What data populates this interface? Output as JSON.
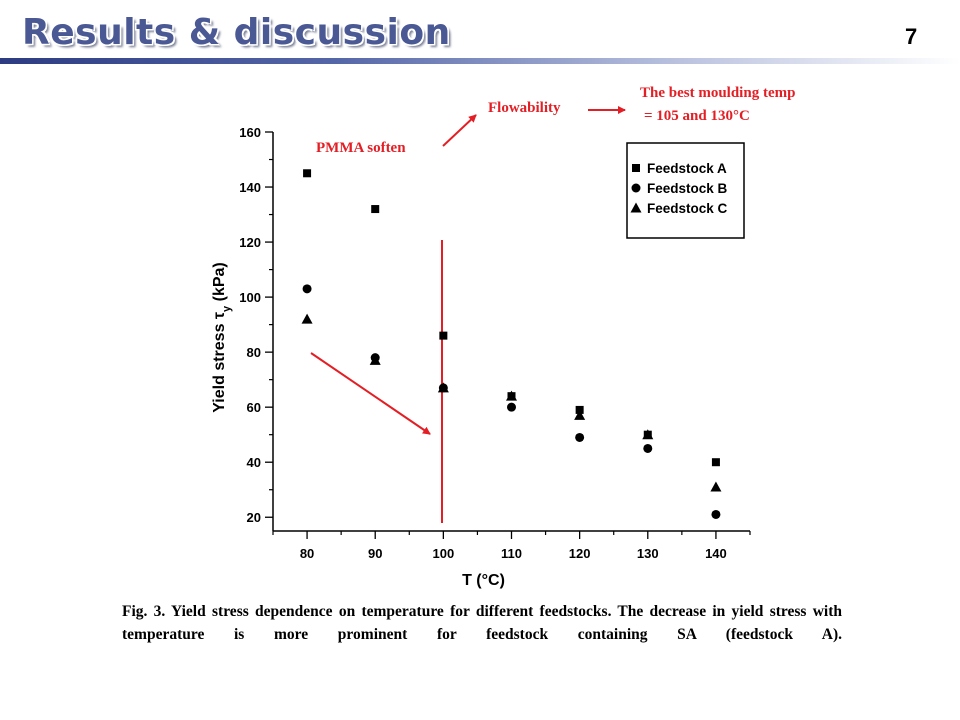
{
  "slide": {
    "title": "Results & discussion",
    "page_number": "7",
    "caption": "Fig. 3. Yield stress dependence on temperature for different feedstocks. The decrease in yield stress with temperature is more prominent for feedstock containing SA (feedstock A)."
  },
  "annotations": {
    "pmma_soften": "PMMA soften",
    "flowability": "Flowability",
    "best_temp_line1": "The best moulding temp",
    "best_temp_line2": "= 105 and 130°C",
    "color": "#e31e24"
  },
  "chart_data": {
    "type": "scatter",
    "xlabel": "T (°C)",
    "ylabel_prefix": "Yield stress ",
    "ylabel_symbol": "τ",
    "ylabel_sub": "y",
    "ylabel_suffix": " (kPa)",
    "xlim": [
      75,
      145
    ],
    "ylim": [
      15,
      160
    ],
    "x_ticks": [
      80,
      90,
      100,
      110,
      120,
      130,
      140
    ],
    "y_ticks": [
      20,
      40,
      60,
      80,
      100,
      120,
      140,
      160
    ],
    "legend_position": "top-right",
    "x": [
      80,
      90,
      100,
      110,
      120,
      130,
      140
    ],
    "series": [
      {
        "name": "Feedstock A",
        "marker": "square",
        "values": [
          145,
          132,
          86,
          64,
          59,
          50,
          40
        ]
      },
      {
        "name": "Feedstock B",
        "marker": "circle",
        "values": [
          103,
          78,
          67,
          60,
          49,
          45,
          21
        ]
      },
      {
        "name": "Feedstock C",
        "marker": "triangle",
        "values": [
          92,
          77,
          67,
          64,
          57,
          50,
          31
        ]
      }
    ],
    "vertical_marker_x": 100
  }
}
